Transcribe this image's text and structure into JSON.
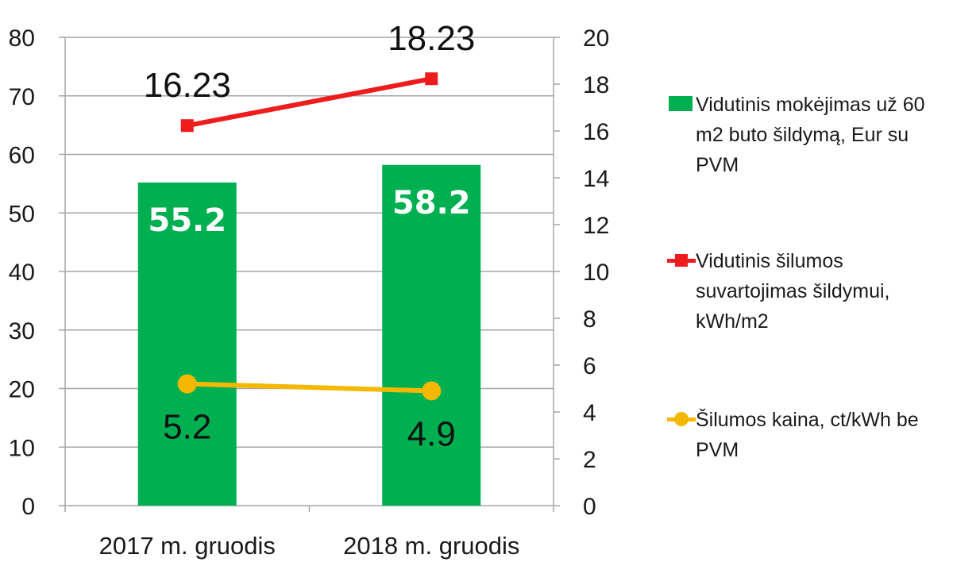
{
  "chart_data": {
    "type": "bar",
    "categories": [
      "2017 m. gruodis",
      "2018 m. gruodis"
    ],
    "y_left": {
      "ylim": [
        0,
        80
      ],
      "ticks": [
        0,
        10,
        20,
        30,
        40,
        50,
        60,
        70,
        80
      ]
    },
    "y_right": {
      "ylim": [
        0,
        20
      ],
      "ticks": [
        0,
        2,
        4,
        6,
        8,
        10,
        12,
        14,
        16,
        18,
        20
      ]
    },
    "grid": true,
    "legend_position": "right",
    "series": [
      {
        "name": "Vidutinis mokėjimas už 60 m2 buto šildymą, Eur su PVM",
        "type": "bar",
        "axis": "left",
        "values": [
          55.2,
          58.2
        ],
        "labels": [
          "55.2",
          "58.2"
        ],
        "color": "#00b050"
      },
      {
        "name": "Vidutinis šilumos suvartojimas šildymui, kWh/m2",
        "type": "line",
        "axis": "right",
        "marker": "square",
        "values": [
          16.23,
          18.23
        ],
        "labels": [
          "16.23",
          "18.23"
        ],
        "color": "#ee1c1c"
      },
      {
        "name": "Šilumos kaina, ct/kWh be PVM",
        "type": "line",
        "axis": "right",
        "marker": "circle",
        "values": [
          5.2,
          4.9
        ],
        "labels": [
          "5.2",
          "4.9"
        ],
        "color": "#f5b800"
      }
    ]
  }
}
